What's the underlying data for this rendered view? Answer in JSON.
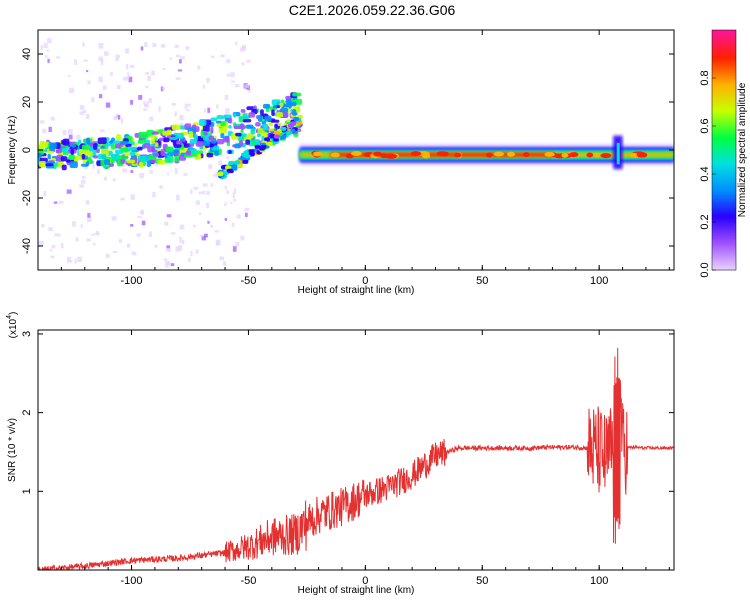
{
  "figure_title": "C2E1.2026.059.22.36.G06",
  "colors": {
    "snr_line": "#e53030",
    "axes": "#000000",
    "background": "#ffffff",
    "colormap": [
      "#ffffff",
      "#e6d2ff",
      "#a050ff",
      "#2a00ff",
      "#0090ff",
      "#00e0e0",
      "#00ff40",
      "#c8ff00",
      "#ffb000",
      "#ff2000",
      "#ff1493"
    ]
  },
  "chart_data": [
    {
      "type": "heatmap",
      "title": "",
      "xlabel": "Height of straight line (km)",
      "ylabel": "Frequency (Hz)",
      "xlim": [
        -140,
        132
      ],
      "ylim": [
        -50,
        50
      ],
      "xticks": [
        -100,
        -50,
        0,
        50,
        100
      ],
      "yticks": [
        -40,
        -20,
        0,
        20,
        40
      ],
      "colorbar": {
        "label": "Normalized spectral amplitude",
        "range": [
          0,
          1
        ],
        "ticks": [
          "0.0",
          "0.2",
          "0.4",
          "0.6",
          "0.8"
        ]
      },
      "features": [
        {
          "segment": "noisy ascending band",
          "x_range": [
            -140,
            -28
          ],
          "freq_center_start": -2,
          "freq_center_end": 16
        },
        {
          "segment": "steady carrier",
          "x_range": [
            -28,
            132
          ],
          "freq_center": -2
        },
        {
          "segment": "transient spike",
          "x_range": [
            106,
            110
          ],
          "freq_range": [
            -8,
            6
          ]
        }
      ]
    },
    {
      "type": "line",
      "title": "",
      "xlabel": "Height of straight line (km)",
      "ylabel": "SNR (10 * v/v)",
      "y_multiplier": "(x10",
      "y_multiplier_exp": "4",
      "xlim": [
        -140,
        132
      ],
      "ylim": [
        0,
        3.05
      ],
      "xticks": [
        -100,
        -50,
        0,
        50,
        100
      ],
      "yticks": [
        1,
        2,
        3
      ],
      "series": [
        {
          "x": [
            -140,
            -120,
            -100,
            -80,
            -60,
            -50,
            -40,
            -30,
            -25,
            -20,
            -10,
            0,
            10,
            20,
            30,
            40,
            50,
            60,
            70,
            80,
            90,
            95,
            100,
            103,
            105,
            107,
            108,
            109,
            110,
            115,
            120,
            132
          ],
          "y": [
            0.0,
            0.05,
            0.12,
            0.15,
            0.22,
            0.3,
            0.42,
            0.45,
            0.6,
            0.7,
            0.8,
            0.95,
            1.05,
            1.2,
            1.45,
            1.55,
            1.55,
            1.55,
            1.55,
            1.56,
            1.56,
            1.55,
            1.5,
            1.4,
            1.55,
            1.45,
            0.3,
            2.4,
            1.55,
            1.56,
            1.55,
            1.55
          ]
        }
      ]
    }
  ]
}
